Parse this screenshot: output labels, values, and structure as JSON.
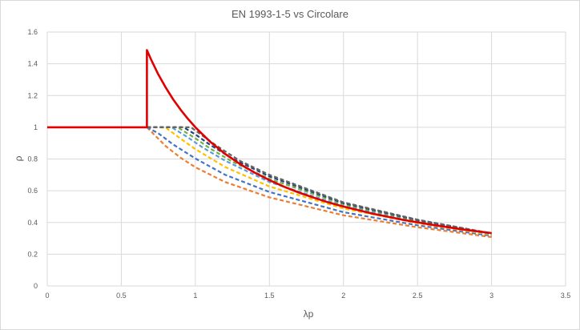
{
  "chart_data": {
    "type": "line",
    "title": "EN 1993-1-5 vs Circolare",
    "xlabel": "λp",
    "ylabel": "ρ",
    "xlim": [
      0,
      3.5
    ],
    "ylim": [
      0,
      1.6
    ],
    "x_ticks": [
      "0",
      "0.5",
      "1",
      "1.5",
      "2",
      "2.5",
      "3",
      "3.5"
    ],
    "y_ticks": [
      "0",
      "0.2",
      "0.4",
      "0.6",
      "0.8",
      "1",
      "1.2",
      "1.4",
      "1.6"
    ],
    "grid": "vertical and horizontal major gridlines",
    "legend": "none",
    "main_series": {
      "color": "#e00000",
      "style": "solid",
      "points": [
        [
          0,
          1.0
        ],
        [
          0.673,
          1.0
        ],
        [
          0.673,
          1.486
        ],
        [
          0.7,
          1.429
        ],
        [
          0.75,
          1.333
        ],
        [
          0.8,
          1.25
        ],
        [
          0.85,
          1.176
        ],
        [
          0.9,
          1.111
        ],
        [
          0.95,
          1.053
        ],
        [
          1.0,
          1.0
        ],
        [
          1.1,
          0.909
        ],
        [
          1.2,
          0.833
        ],
        [
          1.3,
          0.769
        ],
        [
          1.4,
          0.714
        ],
        [
          1.5,
          0.667
        ],
        [
          1.6,
          0.625
        ],
        [
          1.7,
          0.588
        ],
        [
          1.8,
          0.556
        ],
        [
          1.9,
          0.526
        ],
        [
          2.0,
          0.5
        ],
        [
          2.2,
          0.455
        ],
        [
          2.4,
          0.417
        ],
        [
          2.6,
          0.385
        ],
        [
          2.8,
          0.357
        ],
        [
          3.0,
          0.333
        ]
      ]
    },
    "series": [
      {
        "color": "#ed7d31",
        "values": [
          [
            0.673,
            1.0
          ],
          [
            0.8,
            0.881
          ],
          [
            0.9,
            0.808
          ],
          [
            1.0,
            0.748
          ],
          [
            1.2,
            0.655
          ],
          [
            1.5,
            0.558
          ],
          [
            2.0,
            0.445
          ],
          [
            2.5,
            0.37
          ],
          [
            3.0,
            0.308
          ]
        ]
      },
      {
        "color": "#4472c4",
        "values": [
          [
            0.673,
            1.0
          ],
          [
            0.75,
            0.962
          ],
          [
            0.85,
            0.892
          ],
          [
            1.0,
            0.803
          ],
          [
            1.2,
            0.701
          ],
          [
            1.5,
            0.592
          ],
          [
            2.0,
            0.465
          ],
          [
            2.5,
            0.382
          ],
          [
            3.0,
            0.316
          ]
        ]
      },
      {
        "color": "#ffc000",
        "values": [
          [
            0.673,
            1.0
          ],
          [
            0.8,
            0.998
          ],
          [
            0.9,
            0.928
          ],
          [
            1.0,
            0.862
          ],
          [
            1.2,
            0.75
          ],
          [
            1.5,
            0.627
          ],
          [
            2.0,
            0.488
          ],
          [
            2.5,
            0.395
          ],
          [
            3.0,
            0.322
          ]
        ]
      },
      {
        "color": "#5b9bd5",
        "values": [
          [
            0.673,
            1.0
          ],
          [
            0.84,
            1.0
          ],
          [
            0.95,
            0.936
          ],
          [
            1.05,
            0.872
          ],
          [
            1.2,
            0.79
          ],
          [
            1.5,
            0.655
          ],
          [
            2.0,
            0.503
          ],
          [
            2.5,
            0.404
          ],
          [
            3.0,
            0.326
          ]
        ]
      },
      {
        "color": "#70ad47",
        "values": [
          [
            0.673,
            1.0
          ],
          [
            0.88,
            1.0
          ],
          [
            1.0,
            0.93
          ],
          [
            1.1,
            0.866
          ],
          [
            1.25,
            0.783
          ],
          [
            1.5,
            0.675
          ],
          [
            2.0,
            0.515
          ],
          [
            2.5,
            0.411
          ],
          [
            3.0,
            0.329
          ]
        ]
      },
      {
        "color": "#264478",
        "values": [
          [
            0.673,
            1.0
          ],
          [
            0.92,
            1.0
          ],
          [
            1.0,
            0.955
          ],
          [
            1.1,
            0.889
          ],
          [
            1.25,
            0.803
          ],
          [
            1.5,
            0.69
          ],
          [
            2.0,
            0.522
          ],
          [
            2.5,
            0.415
          ],
          [
            3.0,
            0.33
          ]
        ]
      },
      {
        "color": "#636363",
        "values": [
          [
            0.673,
            1.0
          ],
          [
            0.97,
            1.0
          ],
          [
            1.05,
            0.946
          ],
          [
            1.15,
            0.879
          ],
          [
            1.3,
            0.789
          ],
          [
            1.5,
            0.7
          ],
          [
            2.0,
            0.527
          ],
          [
            2.5,
            0.418
          ],
          [
            3.0,
            0.331
          ]
        ]
      }
    ]
  }
}
